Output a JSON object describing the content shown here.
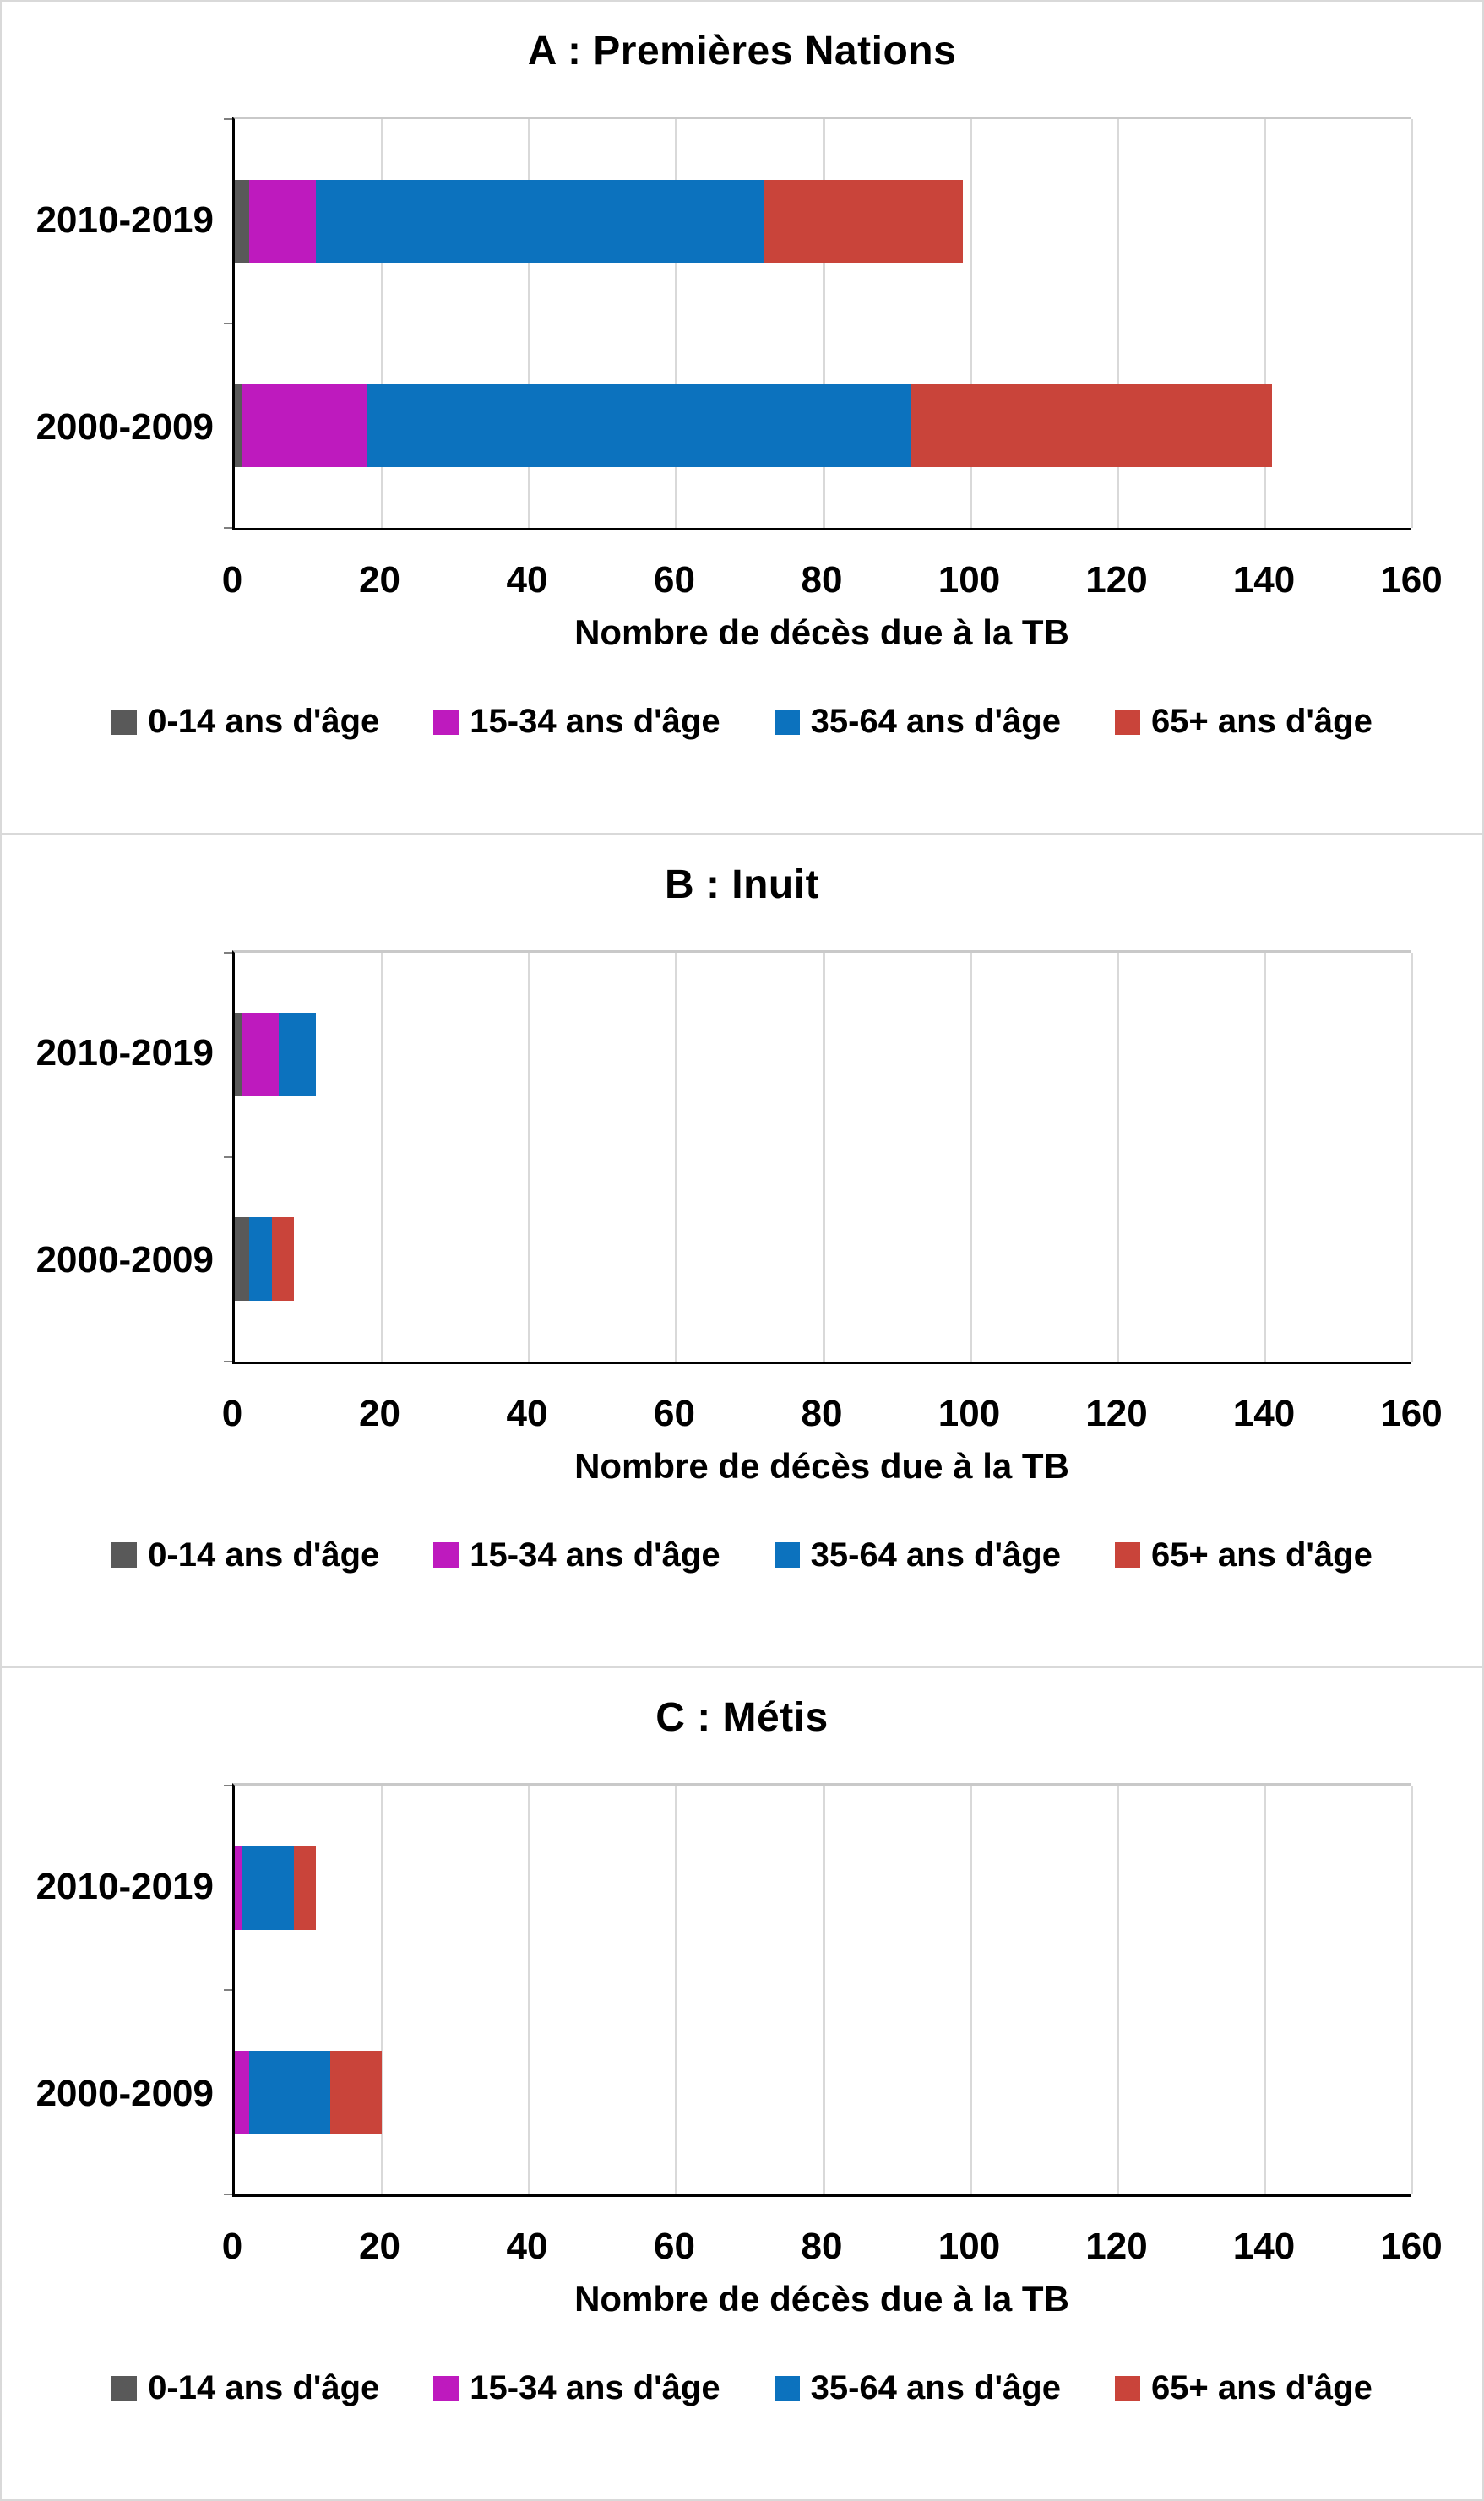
{
  "page": {
    "background": "#ffffff",
    "border_color": "#d9d9d9",
    "axis_color": "#000000",
    "gridline_color": "#d9d9d9"
  },
  "legend": [
    {
      "label": "0-14 ans d'âge",
      "color": "#595959",
      "swatch": "gray-square"
    },
    {
      "label": "15-34 ans d'âge",
      "color": "#be1abe",
      "swatch": "magenta-square"
    },
    {
      "label": "35-64 ans d'âge",
      "color": "#0c72be",
      "swatch": "blue-square"
    },
    {
      "label": "65+ ans d'âge",
      "color": "#c9443a",
      "swatch": "red-square"
    }
  ],
  "chart_data": [
    {
      "type": "bar",
      "orientation": "horizontal",
      "stacked": true,
      "title": "A : Premières Nations",
      "xlabel": "Nombre de décès due à la TB",
      "categories": [
        "2010-2019",
        "2000-2009"
      ],
      "xlim": [
        0,
        160
      ],
      "xticks": [
        0,
        20,
        40,
        60,
        80,
        100,
        120,
        140,
        160
      ],
      "grid": "vertical",
      "legend_position": "bottom",
      "series": [
        {
          "name": "0-14 ans d'âge",
          "color": "#595959",
          "values": [
            2,
            1
          ]
        },
        {
          "name": "15-34 ans d'âge",
          "color": "#be1abe",
          "values": [
            9,
            17
          ]
        },
        {
          "name": "35-64 ans d'âge",
          "color": "#0c72be",
          "values": [
            61,
            74
          ]
        },
        {
          "name": "65+ ans d'âge",
          "color": "#c9443a",
          "values": [
            27,
            49
          ]
        }
      ],
      "totals": [
        99,
        141
      ]
    },
    {
      "type": "bar",
      "orientation": "horizontal",
      "stacked": true,
      "title": "B : Inuit",
      "xlabel": "Nombre de décès due à la TB",
      "categories": [
        "2010-2019",
        "2000-2009"
      ],
      "xlim": [
        0,
        160
      ],
      "xticks": [
        0,
        20,
        40,
        60,
        80,
        100,
        120,
        140,
        160
      ],
      "grid": "vertical",
      "legend_position": "bottom",
      "series": [
        {
          "name": "0-14 ans d'âge",
          "color": "#595959",
          "values": [
            1,
            2
          ]
        },
        {
          "name": "15-34 ans d'âge",
          "color": "#be1abe",
          "values": [
            5,
            0
          ]
        },
        {
          "name": "35-64 ans d'âge",
          "color": "#0c72be",
          "values": [
            5,
            3
          ]
        },
        {
          "name": "65+ ans d'âge",
          "color": "#c9443a",
          "values": [
            0,
            3
          ]
        }
      ],
      "totals": [
        11,
        8
      ]
    },
    {
      "type": "bar",
      "orientation": "horizontal",
      "stacked": true,
      "title": "C : Métis",
      "xlabel": "Nombre de décès due à la TB",
      "categories": [
        "2010-2019",
        "2000-2009"
      ],
      "xlim": [
        0,
        160
      ],
      "xticks": [
        0,
        20,
        40,
        60,
        80,
        100,
        120,
        140,
        160
      ],
      "grid": "vertical",
      "legend_position": "bottom",
      "series": [
        {
          "name": "0-14 ans d'âge",
          "color": "#595959",
          "values": [
            0,
            0
          ]
        },
        {
          "name": "15-34 ans d'âge",
          "color": "#be1abe",
          "values": [
            1,
            2
          ]
        },
        {
          "name": "35-64 ans d'âge",
          "color": "#0c72be",
          "values": [
            7,
            11
          ]
        },
        {
          "name": "65+ ans d'âge",
          "color": "#c9443a",
          "values": [
            3,
            7
          ]
        }
      ],
      "totals": [
        11,
        20
      ]
    }
  ]
}
